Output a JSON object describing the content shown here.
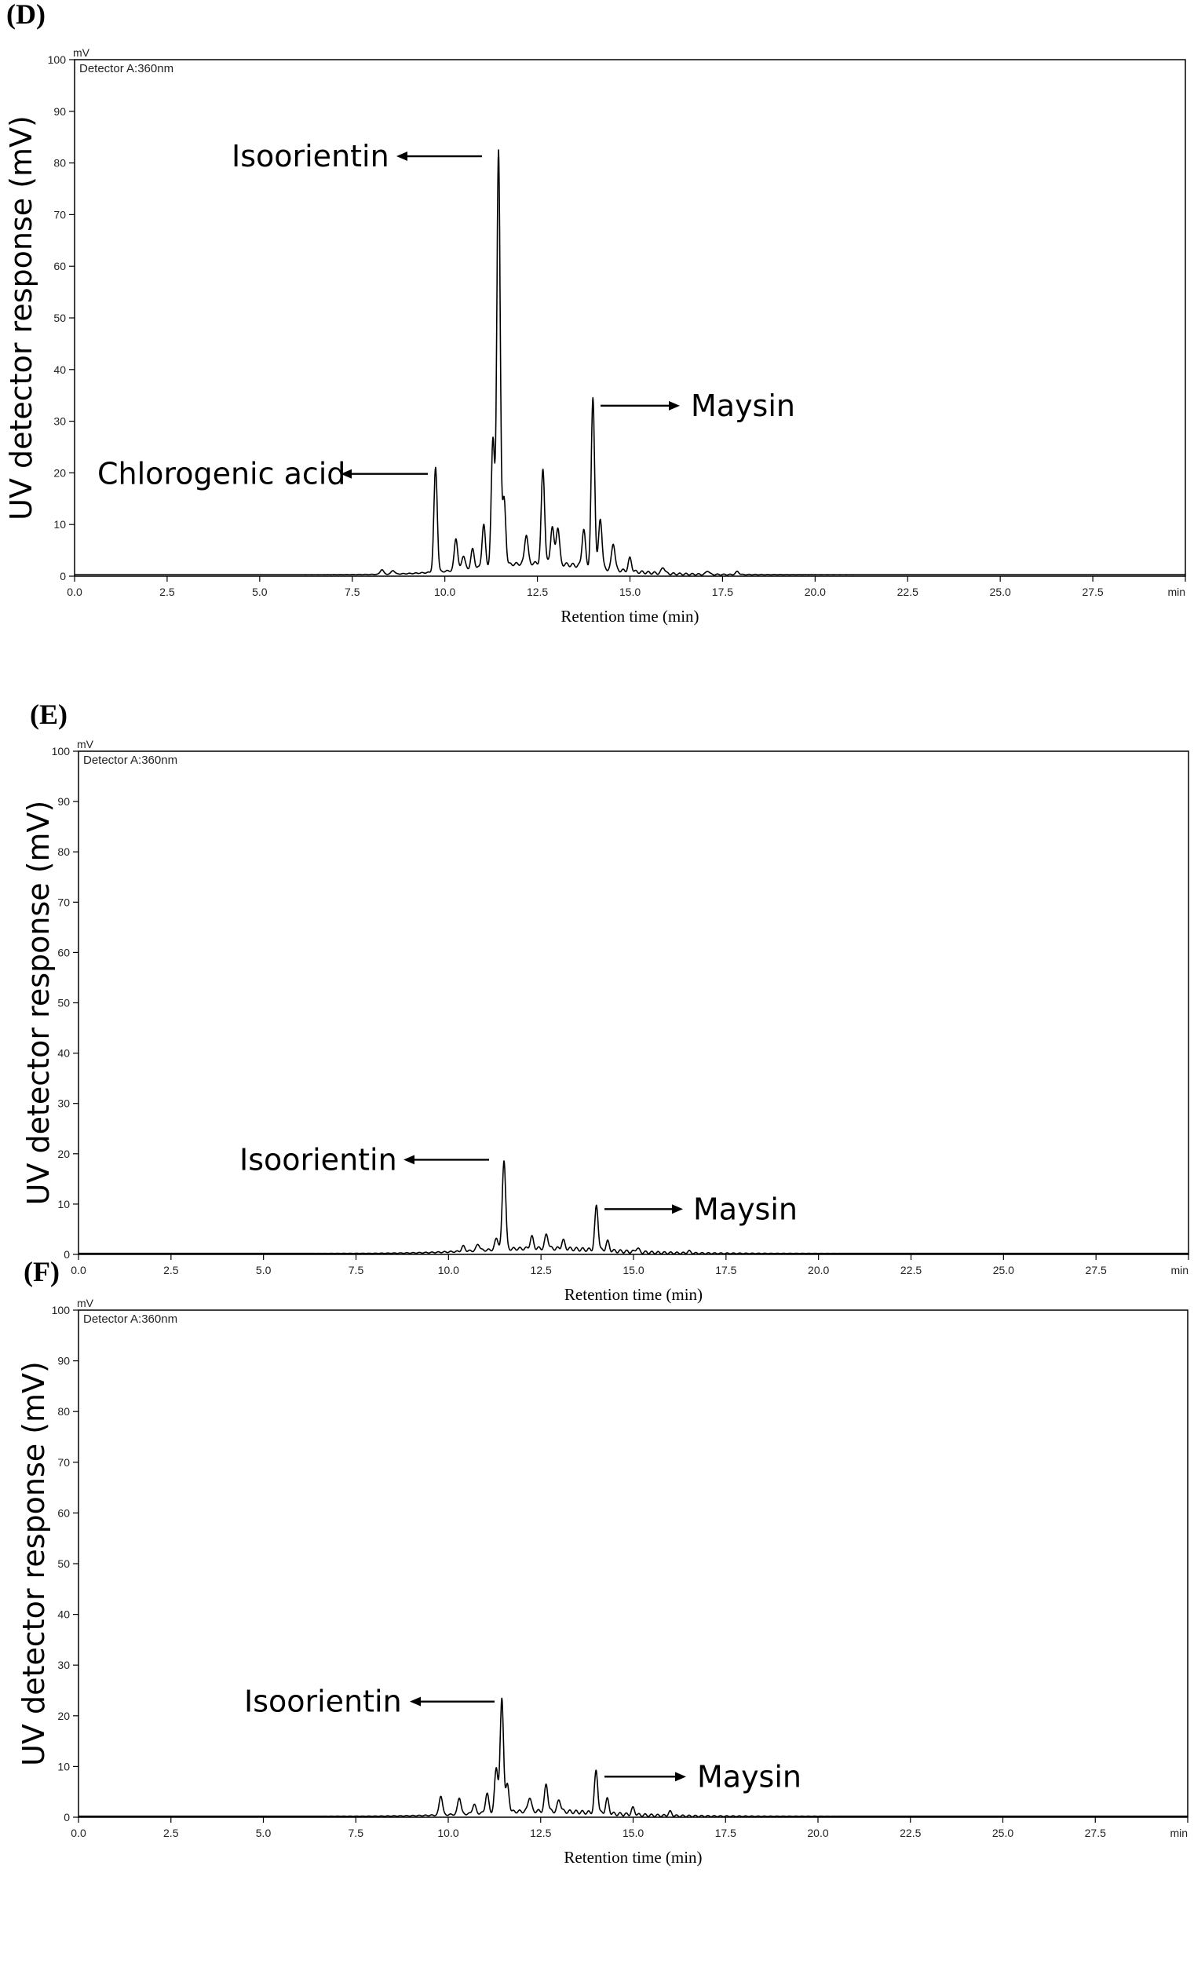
{
  "chart_data": [
    {
      "type": "line",
      "panel_label": "(D)",
      "unit_label": "mV",
      "detector_label": "Detector A:360nm",
      "ylabel": "UV detector response (mV)",
      "xlabel": "Retention time (min)",
      "xlim": [
        0,
        30
      ],
      "ylim": [
        0,
        100
      ],
      "x_ticks": [
        "0.0",
        "2.5",
        "5.0",
        "7.5",
        "10.0",
        "12.5",
        "15.0",
        "17.5",
        "20.0",
        "22.5",
        "25.0",
        "27.5"
      ],
      "x_unit_tick": "min",
      "y_ticks": [
        "0",
        "10",
        "20",
        "30",
        "40",
        "50",
        "60",
        "70",
        "80",
        "90",
        "100"
      ],
      "baseline": 0.3,
      "peaks": [
        {
          "x": 8.3,
          "y": 1.2
        },
        {
          "x": 8.6,
          "y": 1.0
        },
        {
          "x": 9.75,
          "y": 20.5
        },
        {
          "x": 10.3,
          "y": 6.5
        },
        {
          "x": 10.5,
          "y": 3.0
        },
        {
          "x": 10.75,
          "y": 4.0
        },
        {
          "x": 11.05,
          "y": 8.5
        },
        {
          "x": 11.3,
          "y": 25.0
        },
        {
          "x": 11.45,
          "y": 80.5
        },
        {
          "x": 11.6,
          "y": 13.0
        },
        {
          "x": 12.2,
          "y": 6.0
        },
        {
          "x": 12.65,
          "y": 18.5
        },
        {
          "x": 12.9,
          "y": 7.5
        },
        {
          "x": 13.05,
          "y": 7.5
        },
        {
          "x": 13.75,
          "y": 7.5
        },
        {
          "x": 14.0,
          "y": 33.0
        },
        {
          "x": 14.2,
          "y": 10.0
        },
        {
          "x": 14.55,
          "y": 5.5
        },
        {
          "x": 15.0,
          "y": 2.8
        },
        {
          "x": 15.9,
          "y": 1.5
        },
        {
          "x": 17.1,
          "y": 1.0
        },
        {
          "x": 17.9,
          "y": 0.9
        }
      ],
      "annotations": [
        {
          "text": "Isoorientin",
          "direction": "left",
          "y": 81
        },
        {
          "text": "Maysin",
          "direction": "right",
          "y": 33
        },
        {
          "text": "Chlorogenic acid",
          "direction": "left",
          "y": 19.5
        }
      ]
    },
    {
      "type": "line",
      "panel_label": "(E)",
      "unit_label": "mV",
      "detector_label": "Detector A:360nm",
      "ylabel": "UV detector response (mV)",
      "xlabel": "Retention time (min)",
      "xlim": [
        0,
        30
      ],
      "ylim": [
        0,
        100
      ],
      "x_ticks": [
        "0.0",
        "2.5",
        "5.0",
        "7.5",
        "10.0",
        "12.5",
        "15.0",
        "17.5",
        "20.0",
        "22.5",
        "25.0",
        "27.5"
      ],
      "x_unit_tick": "min",
      "y_ticks": [
        "0",
        "10",
        "20",
        "30",
        "40",
        "50",
        "60",
        "70",
        "80",
        "90",
        "100"
      ],
      "baseline": 0.2,
      "peaks": [
        {
          "x": 10.4,
          "y": 1.2
        },
        {
          "x": 10.8,
          "y": 1.5
        },
        {
          "x": 11.3,
          "y": 2.5
        },
        {
          "x": 11.5,
          "y": 18.0
        },
        {
          "x": 12.25,
          "y": 2.5
        },
        {
          "x": 12.65,
          "y": 3.0
        },
        {
          "x": 13.1,
          "y": 1.8
        },
        {
          "x": 14.0,
          "y": 9.0
        },
        {
          "x": 14.3,
          "y": 2.0
        },
        {
          "x": 15.1,
          "y": 1.0
        },
        {
          "x": 16.5,
          "y": 0.6
        }
      ],
      "annotations": [
        {
          "text": "Isoorientin",
          "direction": "left",
          "y": 18.5
        },
        {
          "text": "Maysin",
          "direction": "right",
          "y": 9
        }
      ]
    },
    {
      "type": "line",
      "panel_label": "(F)",
      "unit_label": "mV",
      "detector_label": "Detector A:360nm",
      "ylabel": "UV detector response (mV)",
      "xlabel": "Retention time (min)",
      "xlim": [
        0,
        30
      ],
      "ylim": [
        0,
        100
      ],
      "x_ticks": [
        "0.0",
        "2.5",
        "5.0",
        "7.5",
        "10.0",
        "12.5",
        "15.0",
        "17.5",
        "20.0",
        "22.5",
        "25.0",
        "27.5"
      ],
      "x_unit_tick": "min",
      "y_ticks": [
        "0",
        "10",
        "20",
        "30",
        "40",
        "50",
        "60",
        "70",
        "80",
        "90",
        "100"
      ],
      "baseline": 0.2,
      "peaks": [
        {
          "x": 9.8,
          "y": 4.0
        },
        {
          "x": 10.3,
          "y": 3.5
        },
        {
          "x": 10.7,
          "y": 2.0
        },
        {
          "x": 11.05,
          "y": 4.0
        },
        {
          "x": 11.3,
          "y": 9.0
        },
        {
          "x": 11.45,
          "y": 22.5
        },
        {
          "x": 11.6,
          "y": 5.5
        },
        {
          "x": 12.2,
          "y": 3.0
        },
        {
          "x": 12.65,
          "y": 5.5
        },
        {
          "x": 13.0,
          "y": 2.5
        },
        {
          "x": 14.0,
          "y": 8.5
        },
        {
          "x": 14.3,
          "y": 3.0
        },
        {
          "x": 15.0,
          "y": 1.5
        },
        {
          "x": 16.0,
          "y": 1.0
        }
      ],
      "annotations": [
        {
          "text": "Isoorientin",
          "direction": "left",
          "y": 22.5
        },
        {
          "text": "Maysin",
          "direction": "right",
          "y": 8
        }
      ]
    }
  ]
}
